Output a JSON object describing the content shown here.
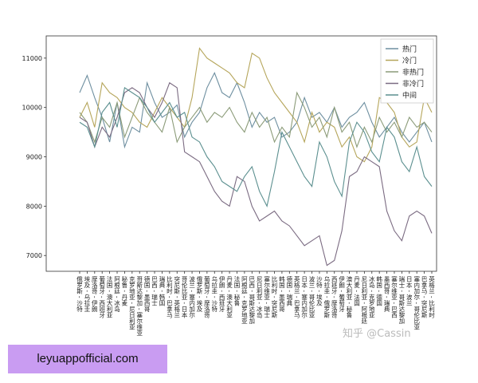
{
  "chart_data": {
    "type": "line",
    "categories": [
      "俄罗斯 - 沙特",
      "埃及 - 乌拉圭",
      "摩洛哥 - 伊朗",
      "葡萄牙 - 西班牙",
      "法国 - 澳大利亚",
      "阿根廷 - 冰岛",
      "秘鲁 - 丹麦",
      "克罗地亚 - 尼日利亚",
      "哥斯达黎加 - 塞尔维亚",
      "德国 - 墨西哥",
      "巴西 - 瑞士",
      "瑞典 - 韩国",
      "比利时 - 巴拿马",
      "突尼斯 - 英格兰",
      "哥伦比亚 - 日本",
      "波兰 - 塞内加尔",
      "俄罗斯 - 埃及",
      "葡萄牙 - 摩洛哥",
      "乌拉圭 - 沙特",
      "伊朗 - 西班牙",
      "丹麦 - 澳大利亚",
      "法国 - 秘鲁",
      "阿根廷 - 克罗地亚",
      "巴西 - 哥斯达黎加",
      "尼日利亚 - 冰岛",
      "塞尔维亚 - 瑞士",
      "比利时 - 突尼斯",
      "韩国 - 墨西哥",
      "德国 - 瑞典",
      "英格兰 - 巴拿马",
      "日本 - 塞内加尔",
      "波兰 - 哥伦比亚",
      "沙特 - 埃及",
      "乌拉圭 - 俄罗斯",
      "西班牙 - 摩洛哥",
      "伊朗 - 葡萄牙",
      "澳大利亚 - 秘鲁",
      "丹麦 - 法国",
      "尼日利亚 - 阿根廷",
      "冰岛 - 克罗地亚",
      "韩国 - 德国",
      "墨西哥 - 瑞典",
      "塞尔维亚 - 巴西",
      "瑞士 - 哥斯达黎加",
      "日本 - 波兰",
      "塞内加尔 - 哥伦比亚",
      "巴拿马 - 突尼斯",
      "英格兰 - 比利时"
    ],
    "series": [
      {
        "name": "热门",
        "color": "#6e8fa0",
        "values": [
          10300,
          10650,
          10200,
          9800,
          9300,
          10100,
          9200,
          9600,
          9500,
          10500,
          10100,
          9800,
          9900,
          10050,
          9400,
          9700,
          9900,
          10400,
          10700,
          10300,
          10200,
          10500,
          10100,
          9600,
          9900,
          9700,
          9800,
          9400,
          9500,
          9700,
          10200,
          9800,
          9900,
          9700,
          10000,
          9600,
          9800,
          9900,
          10100,
          9700,
          9400,
          9600,
          9800,
          9500,
          9300,
          9500,
          9700,
          9300
        ]
      },
      {
        "name": "冷门",
        "color": "#b5a55a",
        "values": [
          9800,
          10100,
          9600,
          10500,
          10300,
          10200,
          10000,
          9900,
          9700,
          9600,
          9900,
          10200,
          10000,
          9800,
          9600,
          10200,
          11200,
          11000,
          10900,
          10800,
          10700,
          10500,
          10400,
          11100,
          11000,
          10600,
          10300,
          10100,
          9900,
          9700,
          9300,
          9900,
          9500,
          9700,
          9600,
          9200,
          9400,
          9000,
          8900,
          9200,
          10200,
          10100,
          9900,
          9400,
          9200,
          9300,
          10200,
          9900
        ]
      },
      {
        "name": "非热门",
        "color": "#8b9b78",
        "values": [
          9900,
          9700,
          9300,
          9800,
          9600,
          10100,
          9400,
          9800,
          10200,
          9900,
          9700,
          9500,
          10000,
          9300,
          9600,
          9800,
          10000,
          9700,
          9900,
          9800,
          10000,
          9700,
          9500,
          9900,
          9600,
          9800,
          9300,
          9600,
          9400,
          10300,
          10000,
          9600,
          9800,
          9400,
          10000,
          9500,
          9700,
          9200,
          9600,
          9300,
          9800,
          9500,
          9700,
          9400,
          9800,
          9600,
          9700,
          9500
        ]
      },
      {
        "name": "非冷门",
        "color": "#7b6b82",
        "values": [
          9800,
          9700,
          9200,
          9600,
          9400,
          9800,
          10300,
          10400,
          10300,
          10000,
          9800,
          10100,
          10500,
          10400,
          9100,
          9000,
          8900,
          8600,
          8300,
          8100,
          8000,
          8600,
          8500,
          8000,
          7700,
          7800,
          7900,
          7700,
          7600,
          7400,
          7200,
          7300,
          7400,
          6800,
          6900,
          7500,
          8600,
          8700,
          9000,
          8900,
          8800,
          7900,
          7500,
          7300,
          7800,
          7900,
          7800,
          7450
        ]
      },
      {
        "name": "中间",
        "color": "#5b8f8f",
        "values": [
          9700,
          9600,
          9200,
          9900,
          10100,
          9600,
          10400,
          10300,
          10200,
          10000,
          9700,
          9900,
          10100,
          9800,
          9900,
          9400,
          9300,
          9000,
          8800,
          8500,
          8400,
          8300,
          8600,
          8800,
          8300,
          8000,
          8700,
          9500,
          9200,
          8900,
          8600,
          8400,
          9300,
          9000,
          8500,
          8200,
          9300,
          9700,
          9500,
          9100,
          8900,
          9600,
          9400,
          8900,
          8700,
          9200,
          8600,
          8400
        ]
      }
    ],
    "ylim": [
      6680,
      11450
    ],
    "yticks": [
      7000,
      8000,
      9000,
      10000,
      11000
    ],
    "legend": "upper right"
  },
  "watermark": "知乎 @Cassin",
  "banner": "leyuappofficial.com"
}
